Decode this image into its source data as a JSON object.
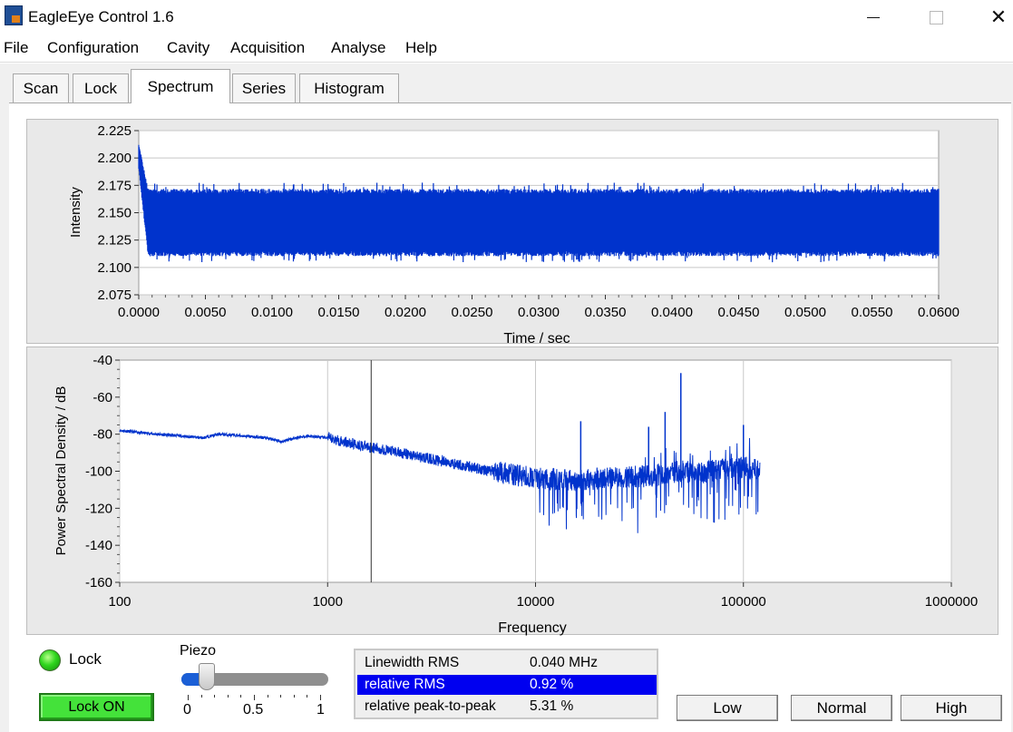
{
  "window": {
    "title": "EagleEye Control 1.6",
    "icon": "eagleeye-app-icon",
    "close_glyph": "✕"
  },
  "menu": [
    "File",
    "Configuration",
    "Cavity",
    "Acquisition",
    "Analyse",
    "Help"
  ],
  "tabs": [
    {
      "label": "Scan",
      "active": false
    },
    {
      "label": "Lock",
      "active": false
    },
    {
      "label": "Spectrum",
      "active": true
    },
    {
      "label": "Series",
      "active": false
    },
    {
      "label": "Histogram",
      "active": false
    }
  ],
  "chart_data": [
    {
      "type": "line",
      "title": "",
      "xlabel": "Time / sec",
      "ylabel": "Intensity",
      "xlim": [
        0,
        0.06
      ],
      "ylim": [
        2.075,
        2.225
      ],
      "xticks": [
        "0.0000",
        "0.0050",
        "0.0100",
        "0.0150",
        "0.0200",
        "0.0250",
        "0.0300",
        "0.0350",
        "0.0400",
        "0.0450",
        "0.0500",
        "0.0550",
        "0.0600"
      ],
      "yticks": [
        "2.075",
        "2.100",
        "2.125",
        "2.150",
        "2.175",
        "2.200",
        "2.225"
      ],
      "grid": "horizontal",
      "series": [
        {
          "color": "#0033cc",
          "initial_peak": 2.212,
          "mean": 2.141,
          "min": 2.103,
          "max": 2.18
        }
      ]
    },
    {
      "type": "line",
      "title": "",
      "xlabel": "Frequency",
      "ylabel": "Power Spectral Density / dB",
      "xscale": "log",
      "xlim": [
        100,
        1000000
      ],
      "ylim": [
        -160,
        -40
      ],
      "xticks": [
        "100",
        "1000",
        "10000",
        "100000",
        "1000000"
      ],
      "yticks": [
        "-40",
        "-60",
        "-80",
        "-100",
        "-120",
        "-140",
        "-160"
      ],
      "grid": "vertical",
      "cursor_x": 1620,
      "series": [
        {
          "color": "#0033cc",
          "x": [
            100,
            150,
            200,
            250,
            300,
            400,
            500,
            600,
            700,
            800,
            1000,
            1300,
            1600,
            2000,
            3000,
            5000,
            8000,
            10000,
            15000,
            20000,
            30000,
            40000,
            50000,
            60000,
            70000,
            80000,
            100000,
            120000
          ],
          "y": [
            -78,
            -80,
            -81,
            -82,
            -80,
            -81,
            -82,
            -84,
            -82,
            -81,
            -82,
            -85,
            -87,
            -89,
            -93,
            -98,
            -102,
            -104,
            -105,
            -104,
            -103,
            -102,
            -100,
            -101,
            -100,
            -99,
            -98,
            -99
          ]
        }
      ],
      "spikes": [
        {
          "x": 16500,
          "y": -73
        },
        {
          "x": 35000,
          "y": -76
        },
        {
          "x": 50000,
          "y": -47
        },
        {
          "x": 42000,
          "y": -68
        },
        {
          "x": 100000,
          "y": -75
        }
      ]
    }
  ],
  "lock_indicator": {
    "label": "Lock",
    "state": "on"
  },
  "lock_button": {
    "label": "Lock ON"
  },
  "piezo": {
    "label": "Piezo",
    "value": 0.2,
    "min_label": "0",
    "mid_label": "0.5",
    "max_label": "1"
  },
  "stats": [
    {
      "name": "Linewidth RMS",
      "value": "0.040 MHz",
      "selected": false
    },
    {
      "name": "relative RMS",
      "value": "0.92 %",
      "selected": true
    },
    {
      "name": "relative peak-to-peak",
      "value": "5.31 %",
      "selected": false
    }
  ],
  "speed_buttons": [
    "Low",
    "Normal",
    "High"
  ]
}
